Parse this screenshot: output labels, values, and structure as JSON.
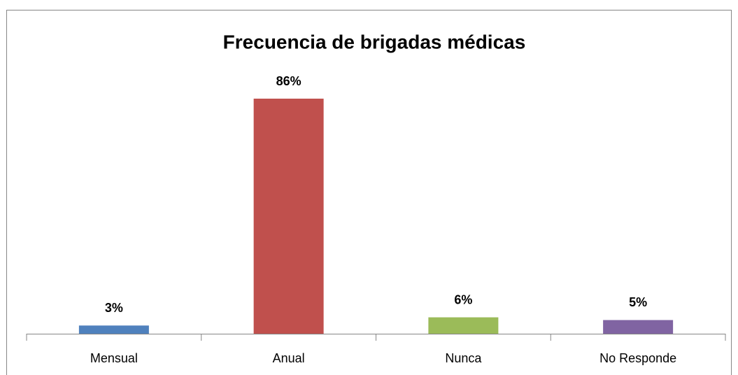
{
  "chart_data": {
    "type": "bar",
    "title": "Frecuencia de brigadas médicas",
    "categories": [
      "Mensual",
      "Anual",
      "Nunca",
      "No Responde"
    ],
    "values": [
      3,
      86,
      6,
      5
    ],
    "value_labels": [
      "3%",
      "86%",
      "6%",
      "5%"
    ],
    "colors": [
      "#4f81bd",
      "#c0504d",
      "#9bbb59",
      "#8064a2"
    ]
  }
}
